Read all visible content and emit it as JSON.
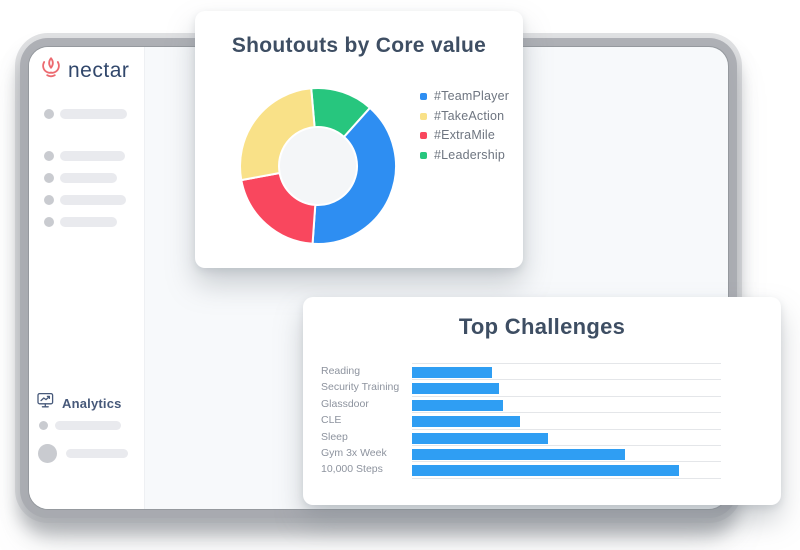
{
  "brand": {
    "name": "nectar",
    "logo_icon": "lotus-flower-icon",
    "logo_color": "#ec6a70",
    "wordmark_color": "#31476b"
  },
  "sidebar": {
    "analytics_label": "Analytics",
    "analytics_icon": "monitor-chart-icon",
    "analytics_color": "#47597a"
  },
  "colors": {
    "heading_text": "#3e4e63",
    "legend_text": "#6e7580",
    "bar_label_text": "#8d939e",
    "window_frame_gray": "#a7aaaf",
    "window_content_bg": "#f7f9fb",
    "card_bg": "#ffffff"
  },
  "chart_data": [
    {
      "type": "doughnut",
      "title": "Shoutouts by Core value",
      "start_angle_deg": -5,
      "inner_radius_ratio": 0.49,
      "hole_color": "#f4f6f8",
      "slices": [
        {
          "label": "#Leadership",
          "pct": 13,
          "color": "#27c67e"
        },
        {
          "label": "#TeamPlayer",
          "pct": 39.5,
          "color": "#2e8ef2"
        },
        {
          "label": "#ExtraMile",
          "pct": 21,
          "color": "#f9475e"
        },
        {
          "label": "#TakeAction",
          "pct": 26.5,
          "color": "#f9e188"
        }
      ],
      "legend_position": "right",
      "legend": [
        {
          "label": "#TeamPlayer",
          "color": "#2e8ef2"
        },
        {
          "label": "#TakeAction",
          "color": "#f9e188"
        },
        {
          "label": "#ExtraMile",
          "color": "#f9475e"
        },
        {
          "label": "#Leadership",
          "color": "#27c67e"
        }
      ]
    },
    {
      "type": "bar-horizontal",
      "title": "Top Challenges",
      "categories": [
        "Reading",
        "Security Training",
        "Glassdoor",
        "CLE",
        "Sleep",
        "Gym 3x Week",
        "10,000 Steps"
      ],
      "values_pct_of_axis": [
        26,
        28,
        29.5,
        35,
        44,
        69,
        86.5
      ],
      "bar_color": "#2f9ef3",
      "gridline_color": "#e4e6e9",
      "axis_tick_labels_visible": false
    }
  ]
}
